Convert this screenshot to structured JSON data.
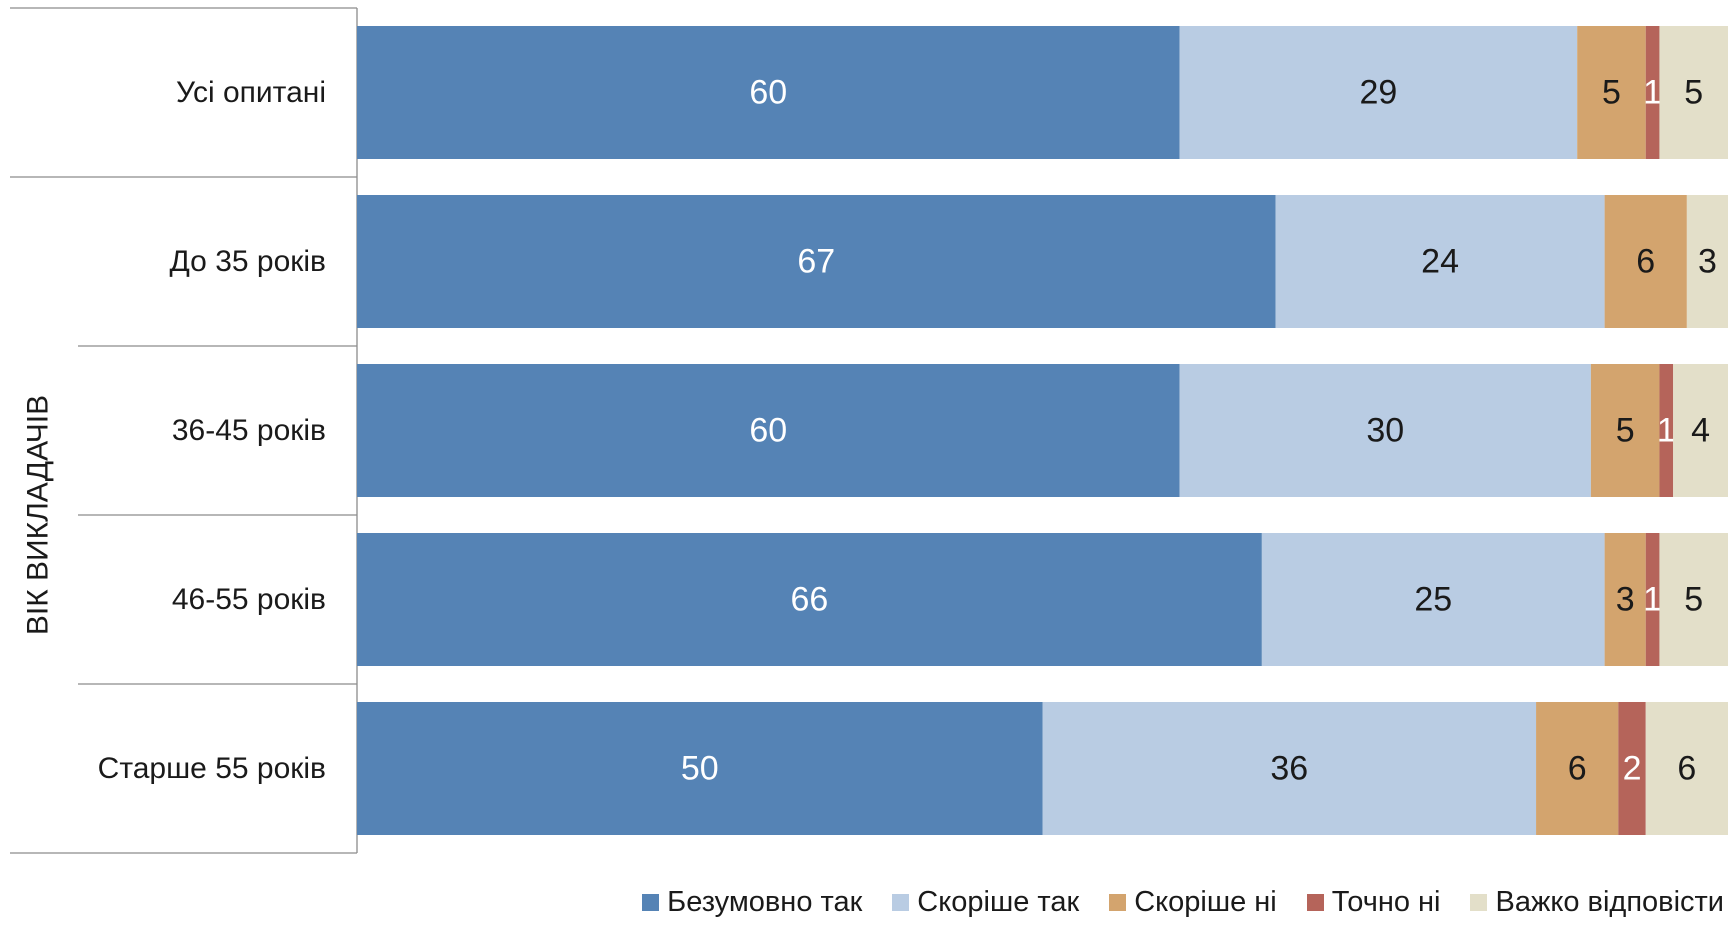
{
  "chart_data": {
    "type": "bar",
    "orientation": "horizontal",
    "stacked": true,
    "group_label": "ВІК ВИКЛАДАЧІВ",
    "categories": [
      "Усі опитані",
      "До 35 років",
      "36-45 років",
      "46-55 років",
      "Старше 55 років"
    ],
    "series": [
      {
        "name": "Безумовно так",
        "color": "#5583b5",
        "label_color": "#ffffff",
        "values": [
          60,
          67,
          60,
          66,
          50
        ]
      },
      {
        "name": "Скоріше так",
        "color": "#b9cce3",
        "label_color": "#1a1a1a",
        "values": [
          29,
          24,
          30,
          25,
          36
        ]
      },
      {
        "name": "Скоріше ні",
        "color": "#d3a46e",
        "label_color": "#1a1a1a",
        "values": [
          5,
          6,
          5,
          3,
          6
        ]
      },
      {
        "name": "Точно ні",
        "color": "#b5645a",
        "label_color": "#ffffff",
        "values": [
          1,
          0,
          1,
          1,
          2
        ]
      },
      {
        "name": "Важко відповісти",
        "color": "#e3dfc9",
        "label_color": "#1a1a1a",
        "values": [
          5,
          3,
          4,
          5,
          6
        ]
      }
    ],
    "xlim": [
      0,
      100
    ],
    "grid": false,
    "legend_position": "bottom-right"
  }
}
